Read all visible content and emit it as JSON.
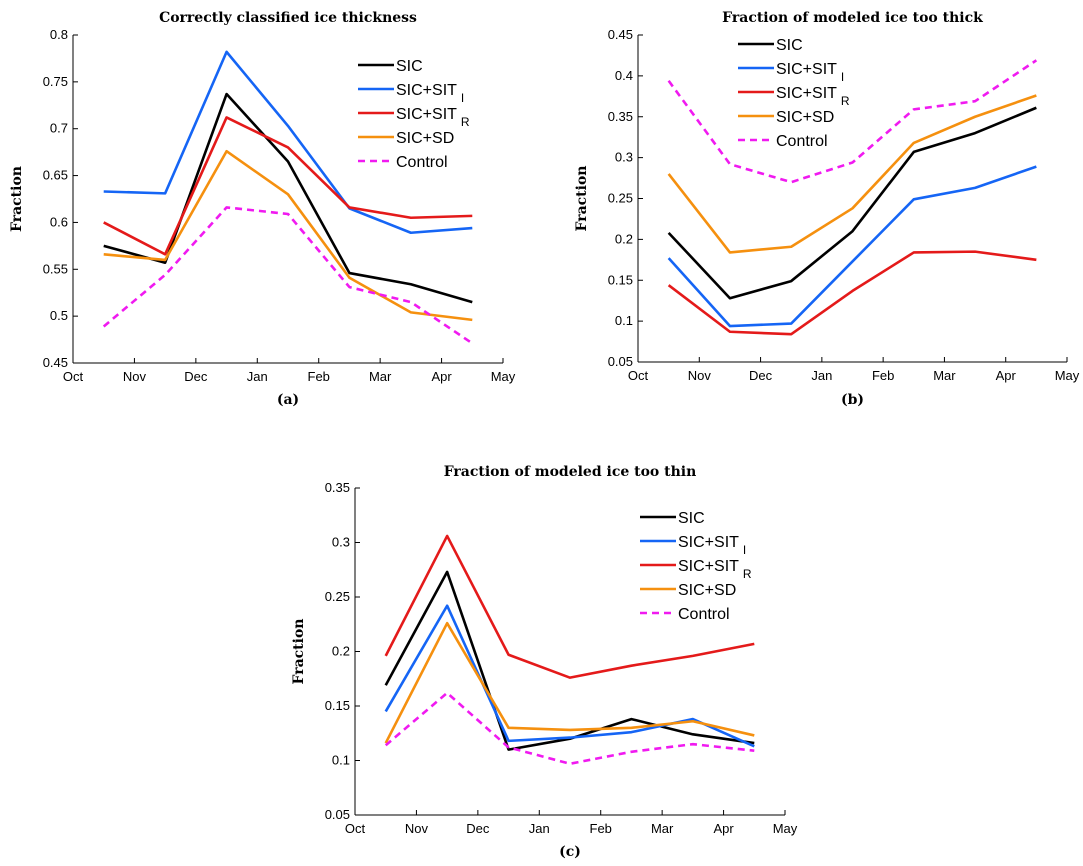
{
  "colors": {
    "SIC": "#000000",
    "SIC_SIT_I": "#1565f5",
    "SIC_SIT_R": "#e41a1a",
    "SIC_SD": "#f5900f",
    "Control": "#f01af0"
  },
  "chart_data": [
    {
      "type": "line",
      "title": "Correctly classified ice thickness",
      "ylabel": "Fraction",
      "caption": "(a)",
      "categories": [
        "Oct",
        "Nov",
        "Dec",
        "Jan",
        "Feb",
        "Mar",
        "Apr",
        "May"
      ],
      "yticks": [
        "0.45",
        "0.5",
        "0.55",
        "0.6",
        "0.65",
        "0.7",
        "0.75",
        "0.8"
      ],
      "ylim": [
        0.45,
        0.8
      ],
      "x": [
        0.5,
        1.5,
        2.5,
        3.5,
        4.5,
        5.5,
        6.5
      ],
      "series": [
        {
          "name": "SIC",
          "sub": "",
          "color_key": "SIC",
          "dashed": false,
          "values": [
            0.575,
            0.557,
            0.737,
            0.665,
            0.546,
            0.534,
            0.515
          ]
        },
        {
          "name": "SIC+SIT",
          "sub": "I",
          "color_key": "SIC_SIT_I",
          "dashed": false,
          "values": [
            0.633,
            0.631,
            0.782,
            0.703,
            0.615,
            0.589,
            0.594
          ]
        },
        {
          "name": "SIC+SIT",
          "sub": "R",
          "color_key": "SIC_SIT_R",
          "dashed": false,
          "values": [
            0.6,
            0.566,
            0.712,
            0.68,
            0.616,
            0.605,
            0.607
          ]
        },
        {
          "name": "SIC+SD",
          "sub": "",
          "color_key": "SIC_SD",
          "dashed": false,
          "values": [
            0.566,
            0.56,
            0.676,
            0.63,
            0.541,
            0.504,
            0.496
          ]
        },
        {
          "name": "Control",
          "sub": "",
          "color_key": "Control",
          "dashed": true,
          "values": [
            0.489,
            0.544,
            0.616,
            0.609,
            0.531,
            0.515,
            0.471
          ]
        }
      ]
    },
    {
      "type": "line",
      "title": "Fraction of modeled ice too thick",
      "ylabel": "Fraction",
      "caption": "(b)",
      "categories": [
        "Oct",
        "Nov",
        "Dec",
        "Jan",
        "Feb",
        "Mar",
        "Apr",
        "May"
      ],
      "yticks": [
        "0.05",
        "0.1",
        "0.15",
        "0.2",
        "0.25",
        "0.3",
        "0.35",
        "0.4",
        "0.45"
      ],
      "ylim": [
        0.05,
        0.45
      ],
      "x": [
        0.5,
        1.5,
        2.5,
        3.5,
        4.5,
        5.5,
        6.5
      ],
      "series": [
        {
          "name": "SIC",
          "sub": "",
          "color_key": "SIC",
          "dashed": false,
          "values": [
            0.208,
            0.128,
            0.149,
            0.21,
            0.307,
            0.33,
            0.361
          ]
        },
        {
          "name": "SIC+SIT",
          "sub": "I",
          "color_key": "SIC_SIT_I",
          "dashed": false,
          "values": [
            0.177,
            0.094,
            0.097,
            0.173,
            0.249,
            0.263,
            0.289
          ]
        },
        {
          "name": "SIC+SIT",
          "sub": "R",
          "color_key": "SIC_SIT_R",
          "dashed": false,
          "values": [
            0.144,
            0.087,
            0.084,
            0.137,
            0.184,
            0.185,
            0.175
          ]
        },
        {
          "name": "SIC+SD",
          "sub": "",
          "color_key": "SIC_SD",
          "dashed": false,
          "values": [
            0.28,
            0.184,
            0.191,
            0.238,
            0.318,
            0.35,
            0.376
          ]
        },
        {
          "name": "Control",
          "sub": "",
          "color_key": "Control",
          "dashed": true,
          "values": [
            0.394,
            0.292,
            0.27,
            0.294,
            0.359,
            0.369,
            0.419
          ]
        }
      ]
    },
    {
      "type": "line",
      "title": "Fraction of modeled ice too thin",
      "ylabel": "Fraction",
      "caption": "(c)",
      "categories": [
        "Oct",
        "Nov",
        "Dec",
        "Jan",
        "Feb",
        "Mar",
        "Apr",
        "May"
      ],
      "yticks": [
        "0.05",
        "0.1",
        "0.15",
        "0.2",
        "0.25",
        "0.3",
        "0.35"
      ],
      "ylim": [
        0.05,
        0.35
      ],
      "x": [
        0.5,
        1.5,
        2.5,
        3.5,
        4.5,
        5.5,
        6.5
      ],
      "series": [
        {
          "name": "SIC",
          "sub": "",
          "color_key": "SIC",
          "dashed": false,
          "values": [
            0.169,
            0.273,
            0.11,
            0.12,
            0.138,
            0.124,
            0.116
          ]
        },
        {
          "name": "SIC+SIT",
          "sub": "I",
          "color_key": "SIC_SIT_I",
          "dashed": false,
          "values": [
            0.145,
            0.242,
            0.118,
            0.121,
            0.126,
            0.138,
            0.113
          ]
        },
        {
          "name": "SIC+SIT",
          "sub": "R",
          "color_key": "SIC_SIT_R",
          "dashed": false,
          "values": [
            0.196,
            0.306,
            0.197,
            0.176,
            0.187,
            0.196,
            0.207
          ]
        },
        {
          "name": "SIC+SD",
          "sub": "",
          "color_key": "SIC_SD",
          "dashed": false,
          "values": [
            0.116,
            0.226,
            0.13,
            0.128,
            0.13,
            0.136,
            0.123
          ]
        },
        {
          "name": "Control",
          "sub": "",
          "color_key": "Control",
          "dashed": true,
          "values": [
            0.114,
            0.162,
            0.112,
            0.097,
            0.108,
            0.115,
            0.109
          ]
        }
      ]
    }
  ]
}
